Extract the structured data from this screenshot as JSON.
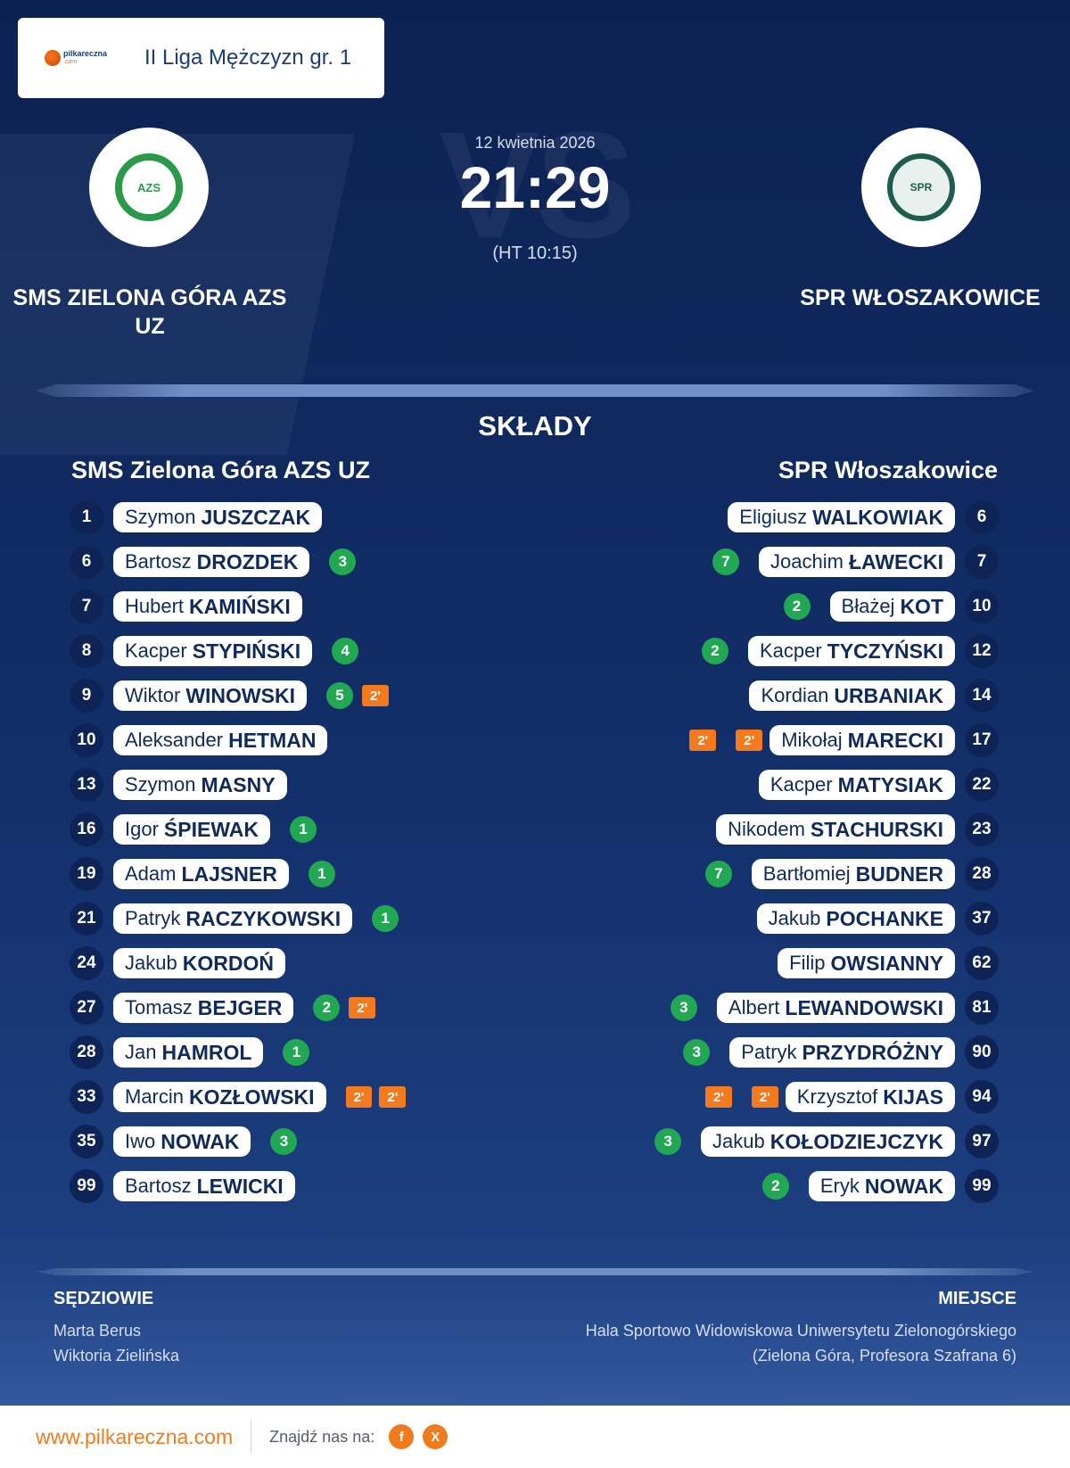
{
  "header": {
    "logo_name": "pilkareczna",
    "logo_suffix": ".com",
    "league": "II Liga Mężczyzn gr. 1"
  },
  "match": {
    "date": "12 kwietnia 2026",
    "score": "21:29",
    "halftime": "(HT 10:15)",
    "vs": "VS",
    "home_name": "SMS ZIELONA GÓRA AZS UZ",
    "away_name": "SPR WŁOSZAKOWICE",
    "home_crest_text": "AZS",
    "away_crest_text": "SPR"
  },
  "lineups": {
    "title": "SKŁADY",
    "home_title": "SMS Zielona Góra AZS UZ",
    "away_title": "SPR Włoszakowice",
    "home": [
      {
        "number": "1",
        "first": "Szymon",
        "last": "JUSZCZAK",
        "goals": null,
        "suspensions": []
      },
      {
        "number": "6",
        "first": "Bartosz",
        "last": "DROZDEK",
        "goals": "3",
        "suspensions": []
      },
      {
        "number": "7",
        "first": "Hubert",
        "last": "KAMIŃSKI",
        "goals": null,
        "suspensions": []
      },
      {
        "number": "8",
        "first": "Kacper",
        "last": "STYPIŃSKI",
        "goals": "4",
        "suspensions": []
      },
      {
        "number": "9",
        "first": "Wiktor",
        "last": "WINOWSKI",
        "goals": "5",
        "suspensions": [
          "2'"
        ]
      },
      {
        "number": "10",
        "first": "Aleksander",
        "last": "HETMAN",
        "goals": null,
        "suspensions": []
      },
      {
        "number": "13",
        "first": "Szymon",
        "last": "MASNY",
        "goals": null,
        "suspensions": []
      },
      {
        "number": "16",
        "first": "Igor",
        "last": "ŚPIEWAK",
        "goals": "1",
        "suspensions": []
      },
      {
        "number": "19",
        "first": "Adam",
        "last": "LAJSNER",
        "goals": "1",
        "suspensions": []
      },
      {
        "number": "21",
        "first": "Patryk",
        "last": "RACZYKOWSKI",
        "goals": "1",
        "suspensions": []
      },
      {
        "number": "24",
        "first": "Jakub",
        "last": "KORDOŃ",
        "goals": null,
        "suspensions": []
      },
      {
        "number": "27",
        "first": "Tomasz",
        "last": "BEJGER",
        "goals": "2",
        "suspensions": [
          "2'"
        ]
      },
      {
        "number": "28",
        "first": "Jan",
        "last": "HAMROL",
        "goals": "1",
        "suspensions": []
      },
      {
        "number": "33",
        "first": "Marcin",
        "last": "KOZŁOWSKI",
        "goals": null,
        "suspensions": [
          "2'",
          "2'"
        ]
      },
      {
        "number": "35",
        "first": "Iwo",
        "last": "NOWAK",
        "goals": "3",
        "suspensions": []
      },
      {
        "number": "99",
        "first": "Bartosz",
        "last": "LEWICKI",
        "goals": null,
        "suspensions": []
      }
    ],
    "away": [
      {
        "number": "6",
        "first": "Eligiusz",
        "last": "WALKOWIAK",
        "goals": null,
        "suspensions": []
      },
      {
        "number": "7",
        "first": "Joachim",
        "last": "ŁAWECKI",
        "goals": "7",
        "suspensions": []
      },
      {
        "number": "10",
        "first": "Błażej",
        "last": "KOT",
        "goals": "2",
        "suspensions": []
      },
      {
        "number": "12",
        "first": "Kacper",
        "last": "TYCZYŃSKI",
        "goals": "2",
        "suspensions": []
      },
      {
        "number": "14",
        "first": "Kordian",
        "last": "URBANIAK",
        "goals": null,
        "suspensions": []
      },
      {
        "number": "17",
        "first": "Mikołaj",
        "last": "MARECKI",
        "goals": null,
        "suspensions": [
          "2'",
          "2'"
        ]
      },
      {
        "number": "22",
        "first": "Kacper",
        "last": "MATYSIAK",
        "goals": null,
        "suspensions": []
      },
      {
        "number": "23",
        "first": "Nikodem",
        "last": "STACHURSKI",
        "goals": null,
        "suspensions": []
      },
      {
        "number": "28",
        "first": "Bartłomiej",
        "last": "BUDNER",
        "goals": "7",
        "suspensions": []
      },
      {
        "number": "37",
        "first": "Jakub",
        "last": "POCHANKE",
        "goals": null,
        "suspensions": []
      },
      {
        "number": "62",
        "first": "Filip",
        "last": "OWSIANNY",
        "goals": null,
        "suspensions": []
      },
      {
        "number": "81",
        "first": "Albert",
        "last": "LEWANDOWSKI",
        "goals": "3",
        "suspensions": []
      },
      {
        "number": "90",
        "first": "Patryk",
        "last": "PRZYDRÓŻNY",
        "goals": "3",
        "suspensions": []
      },
      {
        "number": "94",
        "first": "Krzysztof",
        "last": "KIJAS",
        "goals": null,
        "suspensions": [
          "2'",
          "2'"
        ]
      },
      {
        "number": "97",
        "first": "Jakub",
        "last": "KOŁODZIEJCZYK",
        "goals": "3",
        "suspensions": []
      },
      {
        "number": "99",
        "first": "Eryk",
        "last": "NOWAK",
        "goals": "2",
        "suspensions": []
      }
    ]
  },
  "officials": {
    "label": "SĘDZIOWIE",
    "names": [
      "Marta Berus",
      "Wiktoria Zielińska"
    ]
  },
  "venue": {
    "label": "MIEJSCE",
    "lines": [
      "Hala Sportowo Widowiskowa Uniwersytetu Zielonogórskiego",
      "(Zielona Góra, Profesora Szafrana 6)"
    ]
  },
  "footer": {
    "url": "www.pilkareczna.com",
    "find_us": "Znajdź nas na:",
    "social": [
      {
        "icon": "facebook-icon",
        "glyph": "f"
      },
      {
        "icon": "x-icon",
        "glyph": "X"
      }
    ]
  },
  "colors": {
    "accent": "#f07a1e",
    "goals": "#22a753",
    "background": "#13306b"
  }
}
